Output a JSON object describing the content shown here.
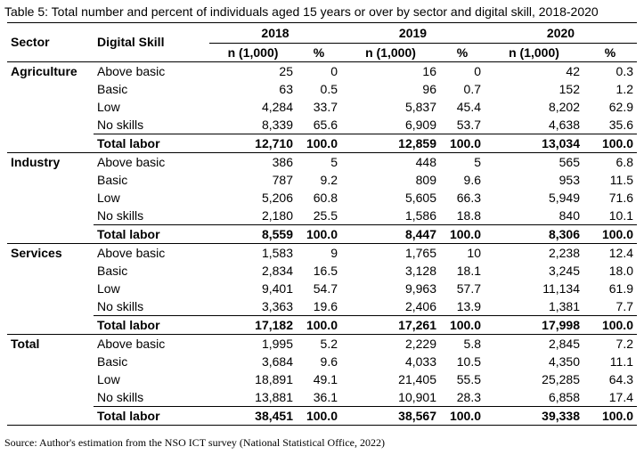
{
  "caption": "Table 5: Total number and percent of individuals aged 15 years or over by sector and digital skill, 2018-2020",
  "headers": {
    "sector": "Sector",
    "digital_skill": "Digital Skill",
    "years": [
      "2018",
      "2019",
      "2020"
    ],
    "n_label": "n (1,000)",
    "pct_label": "%"
  },
  "groups": [
    {
      "sector": "Agriculture",
      "rows": [
        {
          "skill": "Above basic",
          "v": [
            "25",
            "0",
            "16",
            "0",
            "42",
            "0.3"
          ]
        },
        {
          "skill": "Basic",
          "v": [
            "63",
            "0.5",
            "96",
            "0.7",
            "152",
            "1.2"
          ]
        },
        {
          "skill": "Low",
          "v": [
            "4,284",
            "33.7",
            "5,837",
            "45.4",
            "8,202",
            "62.9"
          ]
        },
        {
          "skill": "No skills",
          "v": [
            "8,339",
            "65.6",
            "6,909",
            "53.7",
            "4,638",
            "35.6"
          ]
        },
        {
          "skill": "Total labor",
          "v": [
            "12,710",
            "100.0",
            "12,859",
            "100.0",
            "13,034",
            "100.0"
          ],
          "total": true
        }
      ]
    },
    {
      "sector": "Industry",
      "rows": [
        {
          "skill": "Above basic",
          "v": [
            "386",
            "5",
            "448",
            "5",
            "565",
            "6.8"
          ]
        },
        {
          "skill": "Basic",
          "v": [
            "787",
            "9.2",
            "809",
            "9.6",
            "953",
            "11.5"
          ]
        },
        {
          "skill": "Low",
          "v": [
            "5,206",
            "60.8",
            "5,605",
            "66.3",
            "5,949",
            "71.6"
          ]
        },
        {
          "skill": "No skills",
          "v": [
            "2,180",
            "25.5",
            "1,586",
            "18.8",
            "840",
            "10.1"
          ]
        },
        {
          "skill": "Total labor",
          "v": [
            "8,559",
            "100.0",
            "8,447",
            "100.0",
            "8,306",
            "100.0"
          ],
          "total": true
        }
      ]
    },
    {
      "sector": "Services",
      "rows": [
        {
          "skill": "Above basic",
          "v": [
            "1,583",
            "9",
            "1,765",
            "10",
            "2,238",
            "12.4"
          ]
        },
        {
          "skill": "Basic",
          "v": [
            "2,834",
            "16.5",
            "3,128",
            "18.1",
            "3,245",
            "18.0"
          ]
        },
        {
          "skill": "Low",
          "v": [
            "9,401",
            "54.7",
            "9,963",
            "57.7",
            "11,134",
            "61.9"
          ]
        },
        {
          "skill": "No skills",
          "v": [
            "3,363",
            "19.6",
            "2,406",
            "13.9",
            "1,381",
            "7.7"
          ]
        },
        {
          "skill": "Total labor",
          "v": [
            "17,182",
            "100.0",
            "17,261",
            "100.0",
            "17,998",
            "100.0"
          ],
          "total": true
        }
      ]
    },
    {
      "sector": "Total",
      "rows": [
        {
          "skill": "Above basic",
          "v": [
            "1,995",
            "5.2",
            "2,229",
            "5.8",
            "2,845",
            "7.2"
          ]
        },
        {
          "skill": "Basic",
          "v": [
            "3,684",
            "9.6",
            "4,033",
            "10.5",
            "4,350",
            "11.1"
          ]
        },
        {
          "skill": "Low",
          "v": [
            "18,891",
            "49.1",
            "21,405",
            "55.5",
            "25,285",
            "64.3"
          ]
        },
        {
          "skill": "No skills",
          "v": [
            "13,881",
            "36.1",
            "10,901",
            "28.3",
            "6,858",
            "17.4"
          ]
        },
        {
          "skill": "Total labor",
          "v": [
            "38,451",
            "100.0",
            "38,567",
            "100.0",
            "39,338",
            "100.0"
          ],
          "total": true
        }
      ]
    }
  ],
  "source": "Source: Author's estimation from the NSO ICT survey (National Statistical Office, 2022)"
}
